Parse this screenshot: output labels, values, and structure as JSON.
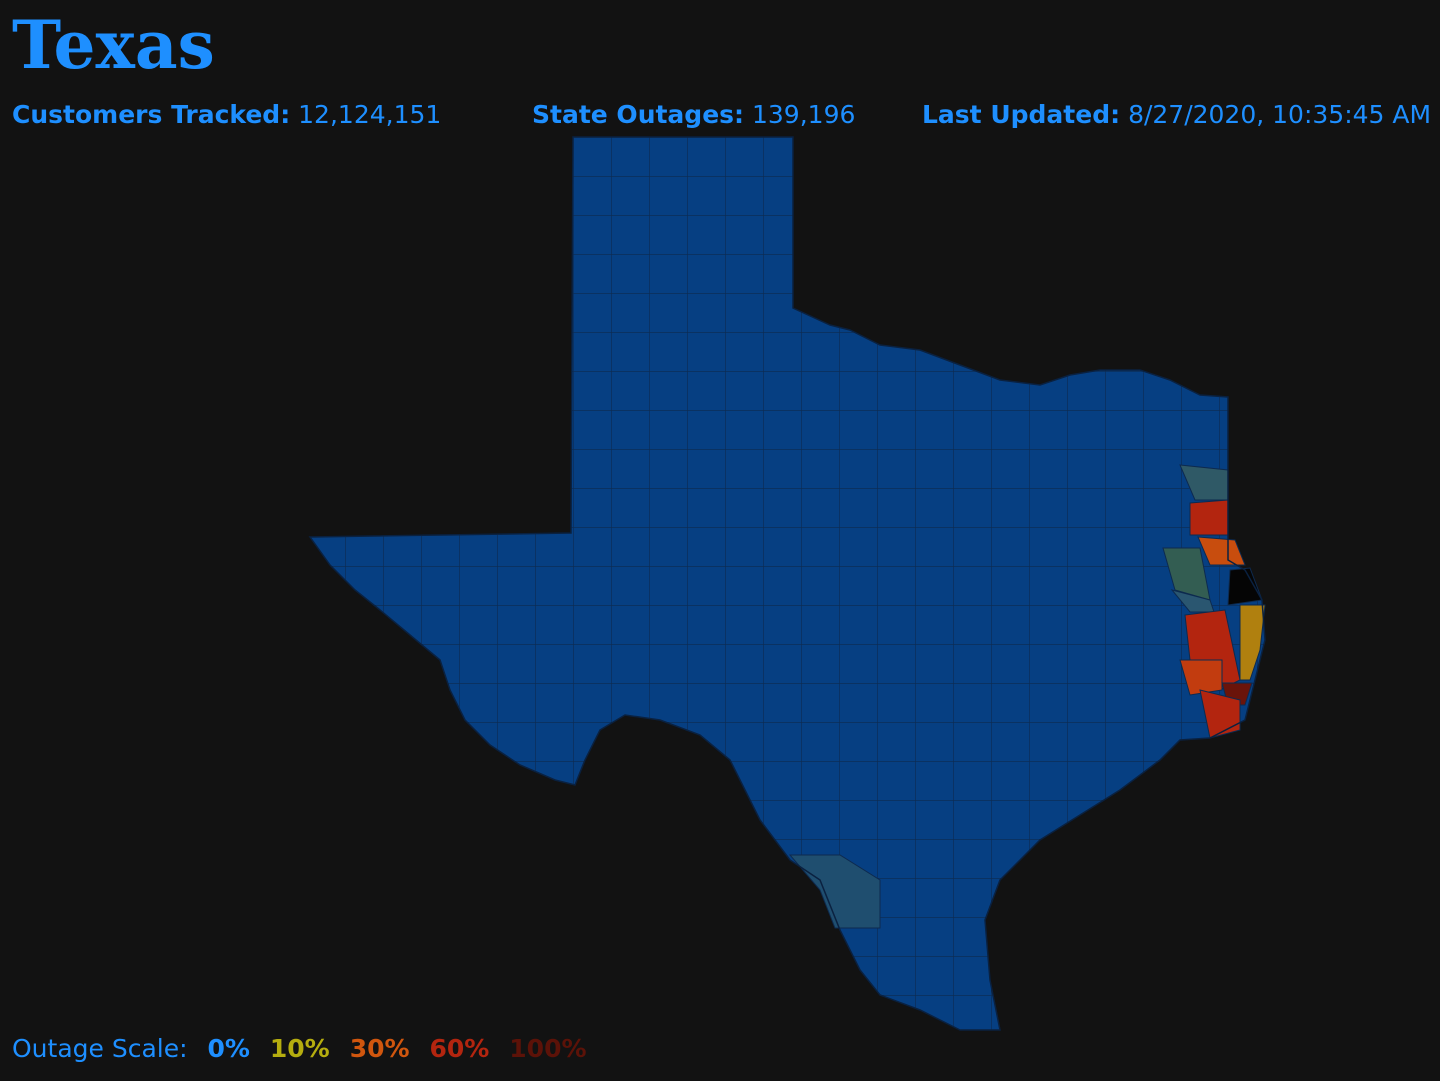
{
  "header": {
    "title": "Texas",
    "stats": [
      {
        "label": "Customers Tracked:",
        "value": "12,124,151"
      },
      {
        "label": "State Outages:",
        "value": "139,196"
      },
      {
        "label": "Last Updated:",
        "value": "8/27/2020, 10:35:45 AM"
      }
    ]
  },
  "legend": {
    "label": "Outage Scale:",
    "items": [
      {
        "label": "0%",
        "color": "#1e8fff"
      },
      {
        "label": "10%",
        "color": "#b5ad0f"
      },
      {
        "label": "30%",
        "color": "#d0560e"
      },
      {
        "label": "60%",
        "color": "#b3250f"
      },
      {
        "label": "100%",
        "color": "#5c1208"
      }
    ]
  }
}
